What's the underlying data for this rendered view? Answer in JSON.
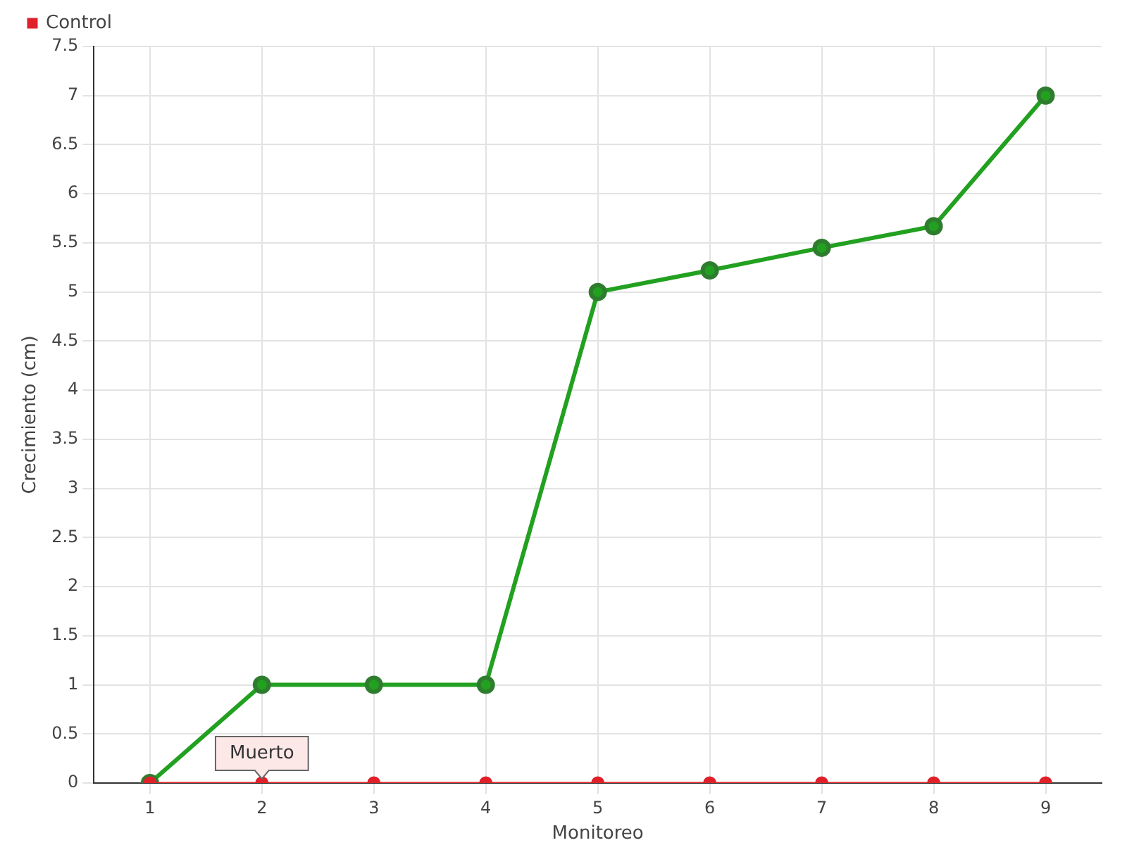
{
  "chart_data": {
    "type": "line",
    "xlabel": "Monitoreo",
    "ylabel": "Crecimiento (cm)",
    "categories": [
      "1",
      "2",
      "3",
      "4",
      "5",
      "6",
      "7",
      "8",
      "9"
    ],
    "series": [
      {
        "color": "#22a020",
        "values": [
          0,
          1,
          1,
          1,
          5,
          5.22,
          5.45,
          5.67,
          7
        ]
      },
      {
        "name": "Control",
        "color": "#e0202a",
        "values": [
          0,
          0,
          0,
          0,
          0,
          0,
          0,
          0,
          0
        ]
      }
    ],
    "ylim": [
      0,
      7.5
    ],
    "yticks": [
      0,
      0.5,
      1,
      1.5,
      2,
      2.5,
      3,
      3.5,
      4,
      4.5,
      5,
      5.5,
      6,
      6.5,
      7,
      7.5
    ],
    "grid": true,
    "legend": "top left",
    "marker": "circle",
    "line_style": "solid",
    "annotations": [
      {
        "text": "Muerto",
        "x": "2",
        "y": 0
      }
    ]
  }
}
